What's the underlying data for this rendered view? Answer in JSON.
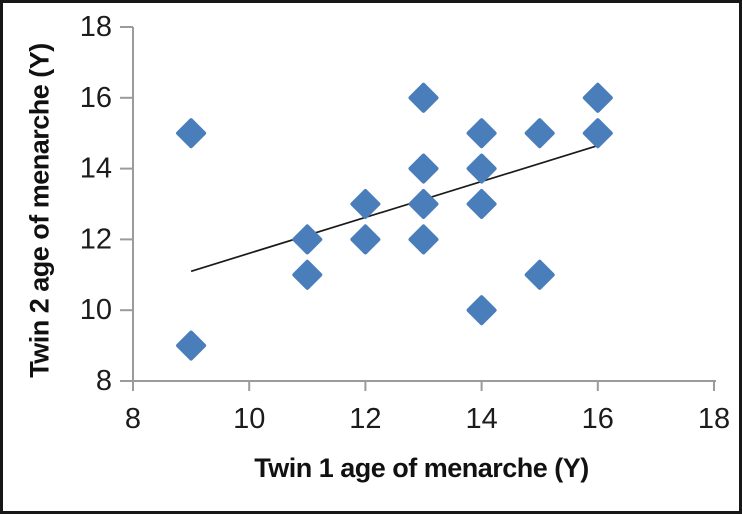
{
  "figure": {
    "background_color": "#ffffff",
    "frame_color": "#171717"
  },
  "chart_data": {
    "type": "scatter",
    "title": "",
    "xlabel": "Twin 1 age of menarche (Y)",
    "ylabel": "Twin 2 age of menarche (Y)",
    "xlim": [
      8,
      18
    ],
    "ylim": [
      8,
      18
    ],
    "xticks": [
      8,
      10,
      12,
      14,
      16,
      18
    ],
    "yticks": [
      8,
      10,
      12,
      14,
      16,
      18
    ],
    "grid": false,
    "legend": "none",
    "marker": "diamond",
    "marker_color": "#4a7ebb",
    "axis_color": "#9b9b9b",
    "tick_label_color": "#1c1c1c",
    "points": [
      {
        "x": 9,
        "y": 15
      },
      {
        "x": 9,
        "y": 9
      },
      {
        "x": 11,
        "y": 12
      },
      {
        "x": 11,
        "y": 11
      },
      {
        "x": 12,
        "y": 13
      },
      {
        "x": 12,
        "y": 12
      },
      {
        "x": 13,
        "y": 16
      },
      {
        "x": 13,
        "y": 14
      },
      {
        "x": 13,
        "y": 13
      },
      {
        "x": 13,
        "y": 12
      },
      {
        "x": 14,
        "y": 15
      },
      {
        "x": 14,
        "y": 14
      },
      {
        "x": 14,
        "y": 13
      },
      {
        "x": 14,
        "y": 10
      },
      {
        "x": 15,
        "y": 15
      },
      {
        "x": 15,
        "y": 11
      },
      {
        "x": 16,
        "y": 16
      },
      {
        "x": 16,
        "y": 15
      }
    ],
    "trendline": {
      "x1": 9,
      "y1": 11.1,
      "x2": 16,
      "y2": 14.65,
      "color": "#1a1a1a"
    }
  }
}
